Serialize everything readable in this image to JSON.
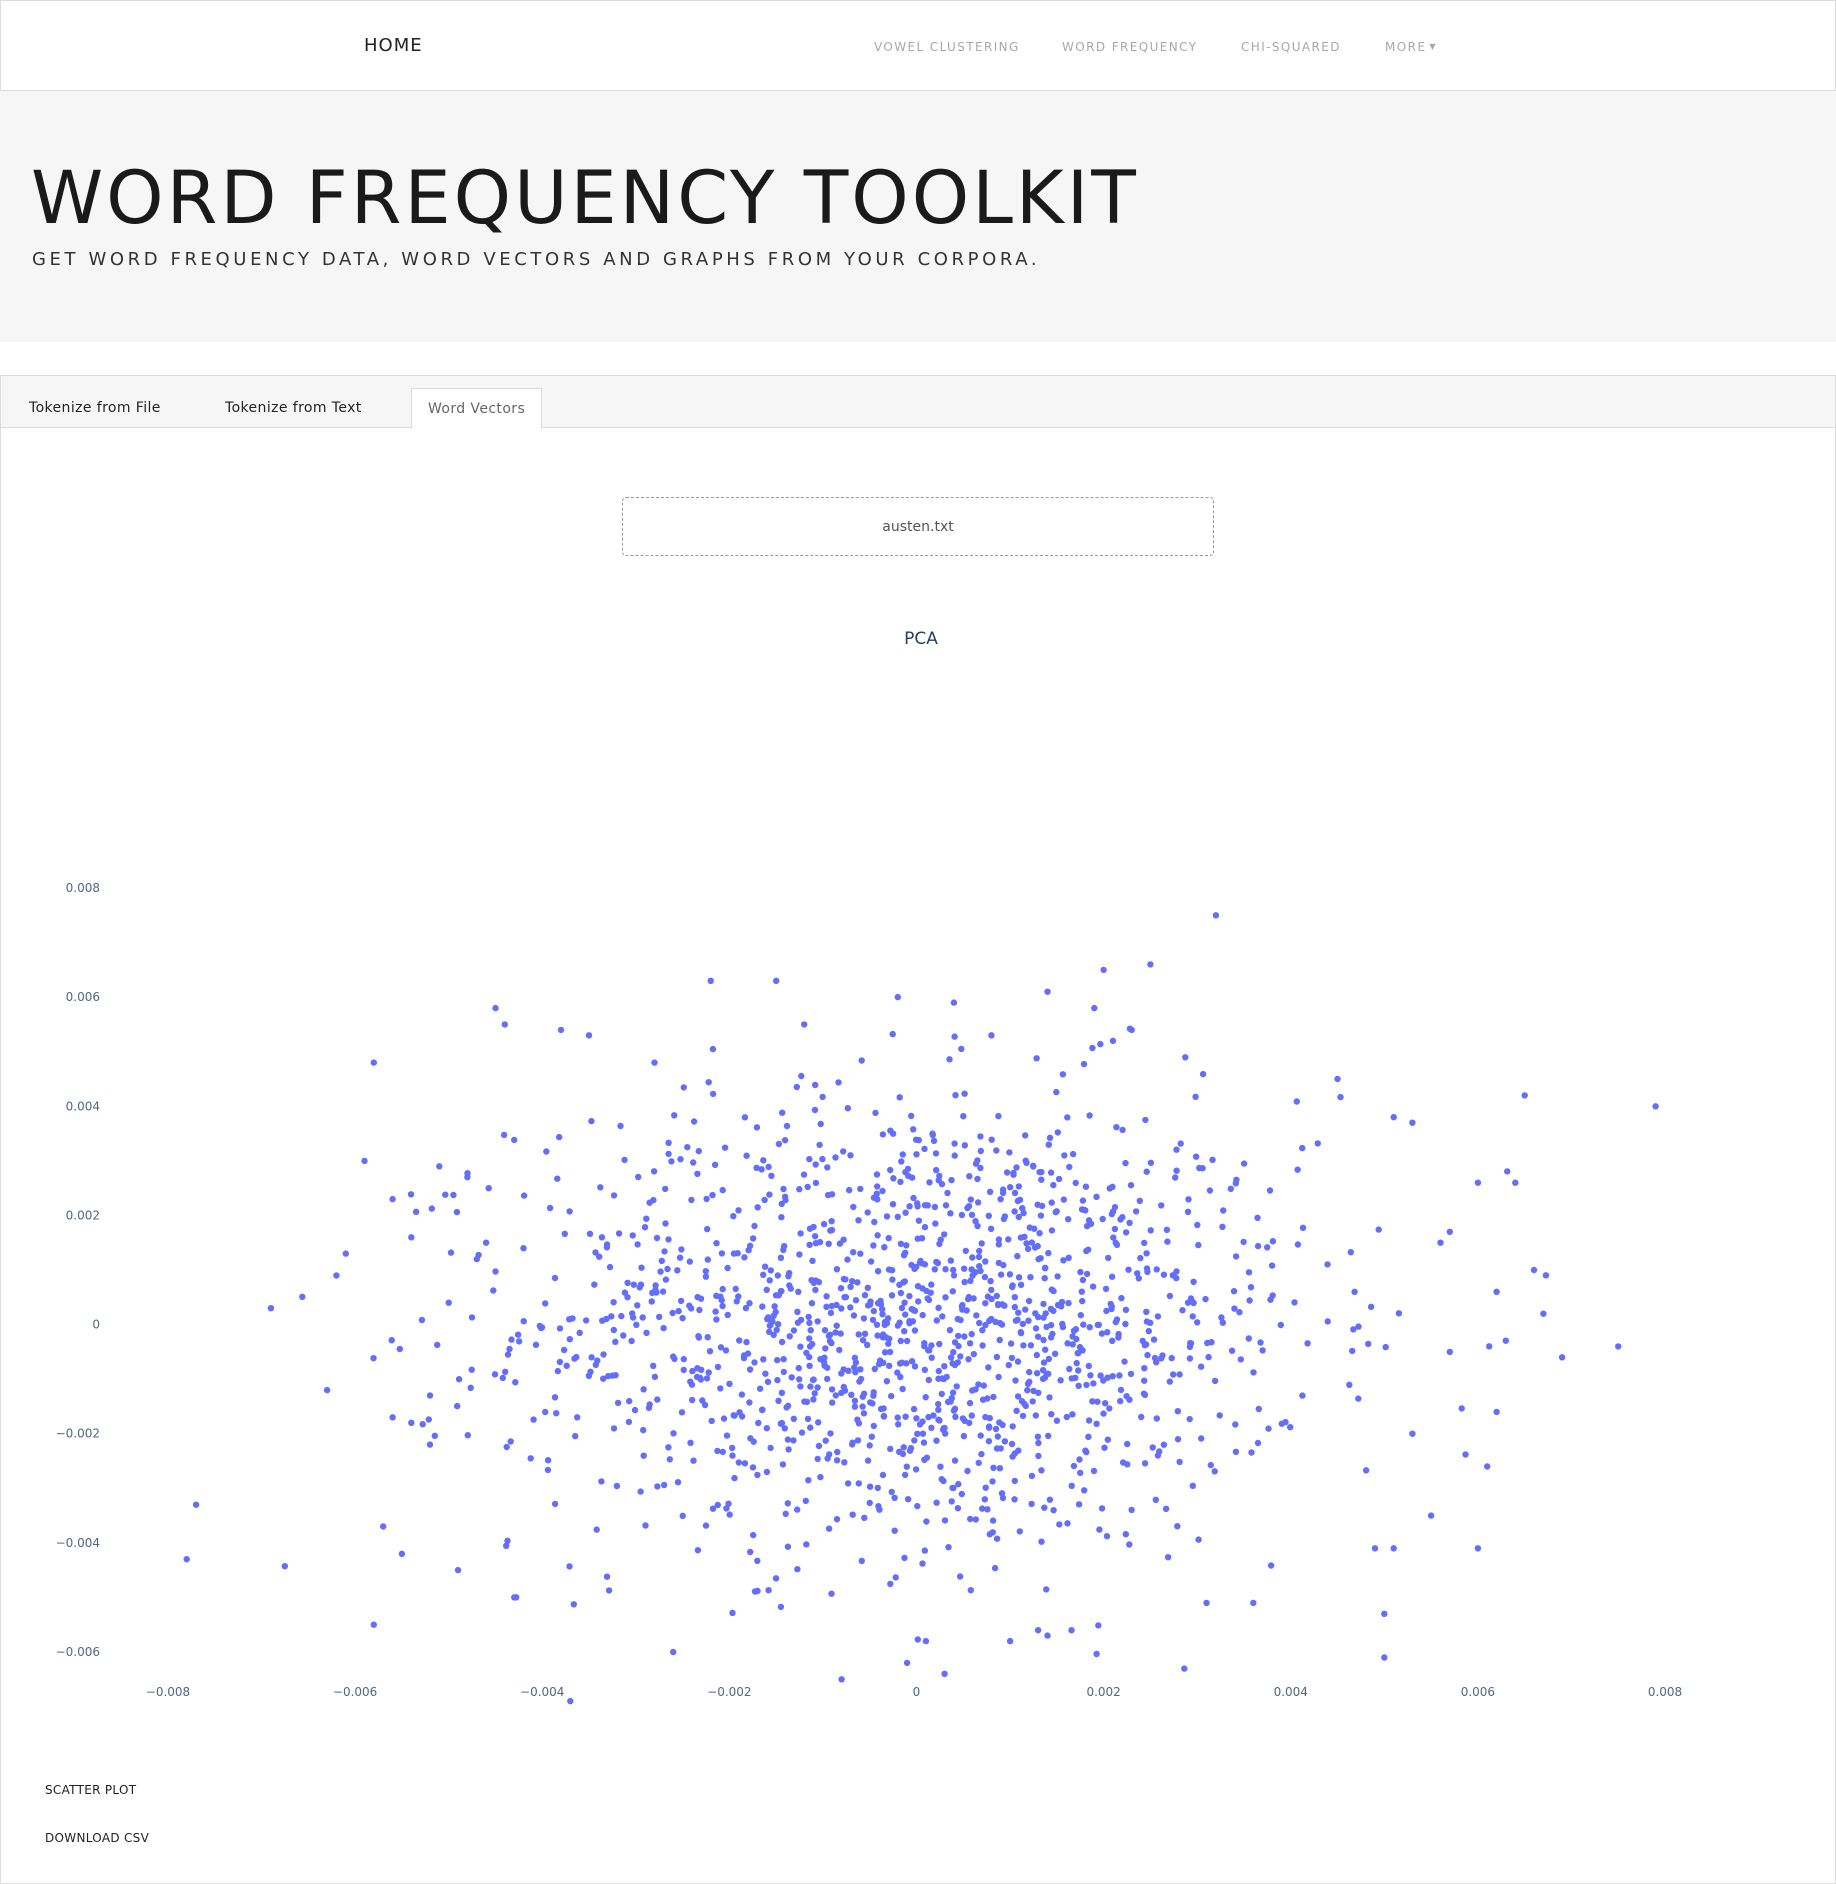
{
  "nav": {
    "home": "HOME",
    "links": [
      "VOWEL CLUSTERING",
      "WORD FREQUENCY",
      "CHI-SQUARED",
      "MORE"
    ]
  },
  "hero": {
    "title": "WORD FREQUENCY TOOLKIT",
    "subtitle": "GET WORD FREQUENCY DATA, WORD VECTORS AND GRAPHS FROM YOUR CORPORA."
  },
  "tabs": {
    "file": "Tokenize from File",
    "text": "Tokenize from Text",
    "vectors": "Word Vectors",
    "active": "Word Vectors"
  },
  "file_input": {
    "value": "austen.txt"
  },
  "actions": {
    "scatter": "SCATTER PLOT",
    "download": "DOWNLOAD CSV"
  },
  "colors": {
    "point": "#636efa",
    "tick_text": "#506784",
    "title": "#2a3f5f"
  },
  "chart_data": {
    "type": "scatter",
    "title": "PCA",
    "xlim": [
      -0.0088,
      0.0088
    ],
    "ylim": [
      -0.0078,
      0.0082
    ],
    "xticks": [
      "−0.008",
      "−0.006",
      "−0.004",
      "−0.002",
      "0",
      "0.002",
      "0.004",
      "0.006",
      "0.008"
    ],
    "yticks": [
      "0.008",
      "0.006",
      "0.004",
      "0.002",
      "0",
      "−0.002",
      "−0.004",
      "−0.006"
    ],
    "grid": false,
    "series": [
      {
        "points": [
          [
            0.0032,
            0.0075
          ],
          [
            0.0025,
            0.0066
          ],
          [
            0.002,
            0.0065
          ],
          [
            -0.0022,
            0.0063
          ],
          [
            -0.0015,
            0.0063
          ],
          [
            0.0014,
            0.0061
          ],
          [
            -0.0002,
            0.006
          ],
          [
            0.0019,
            0.0058
          ],
          [
            0.0004,
            0.0059
          ],
          [
            -0.0045,
            0.0058
          ],
          [
            -0.0044,
            0.0055
          ],
          [
            -0.0038,
            0.0054
          ],
          [
            -0.0035,
            0.0053
          ],
          [
            -0.0058,
            0.0048
          ],
          [
            -0.0028,
            0.0048
          ],
          [
            0.0008,
            0.0053
          ],
          [
            0.0021,
            0.0052
          ],
          [
            0.0023,
            0.0054
          ],
          [
            -0.0012,
            0.0055
          ],
          [
            0.0065,
            0.0042
          ],
          [
            0.0079,
            0.004
          ],
          [
            0.0045,
            0.0045
          ],
          [
            0.0051,
            0.0038
          ],
          [
            0.0053,
            0.0037
          ],
          [
            -0.0059,
            0.003
          ],
          [
            -0.0056,
            0.0023
          ],
          [
            0.006,
            0.0026
          ],
          [
            0.0064,
            0.0026
          ],
          [
            -0.0061,
            0.0013
          ],
          [
            -0.0062,
            0.0009
          ],
          [
            0.0066,
            0.001
          ],
          [
            0.0062,
            0.0006
          ],
          [
            0.0067,
            0.0002
          ],
          [
            0.0069,
            -0.0006
          ],
          [
            0.0075,
            -0.0004
          ],
          [
            -0.0069,
            0.0003
          ],
          [
            -0.0063,
            -0.0012
          ],
          [
            -0.0077,
            -0.0033
          ],
          [
            -0.0078,
            -0.0043
          ],
          [
            -0.0058,
            -0.0055
          ],
          [
            -0.0057,
            -0.0037
          ],
          [
            -0.0055,
            -0.0042
          ],
          [
            -0.0049,
            -0.0045
          ],
          [
            -0.0043,
            -0.005
          ],
          [
            -0.0037,
            -0.0069
          ],
          [
            -0.0026,
            -0.006
          ],
          [
            -0.0008,
            -0.0065
          ],
          [
            -0.0001,
            -0.0062
          ],
          [
            0.0001,
            -0.0058
          ],
          [
            0.0003,
            -0.0064
          ],
          [
            0.0013,
            -0.0056
          ],
          [
            0.0014,
            -0.0057
          ],
          [
            0.001,
            -0.0058
          ],
          [
            0.0031,
            -0.0051
          ],
          [
            0.0036,
            -0.0051
          ],
          [
            0.005,
            -0.0061
          ],
          [
            0.005,
            -0.0053
          ],
          [
            0.0051,
            -0.0041
          ],
          [
            0.0049,
            -0.0041
          ],
          [
            0.0055,
            -0.0035
          ],
          [
            0.006,
            -0.0041
          ],
          [
            0.0061,
            -0.0026
          ],
          [
            0.0062,
            -0.0016
          ],
          [
            0.0053,
            -0.002
          ],
          [
            0.0057,
            -0.0005
          ],
          [
            0.0056,
            0.0015
          ],
          [
            0.0057,
            0.0017
          ],
          [
            -0.0052,
            -0.0022
          ],
          [
            -0.0054,
            -0.0018
          ],
          [
            -0.0056,
            -0.0017
          ],
          [
            -0.0052,
            -0.0013
          ],
          [
            -0.005,
            0.0004
          ],
          [
            -0.0048,
            0.0027
          ],
          [
            -0.0051,
            0.0029
          ],
          [
            -0.0046,
            0.0015
          ],
          [
            -0.0047,
            0.0012
          ],
          [
            -0.0042,
            0.0014
          ],
          [
            -0.0054,
            0.0016
          ]
        ]
      }
    ]
  }
}
